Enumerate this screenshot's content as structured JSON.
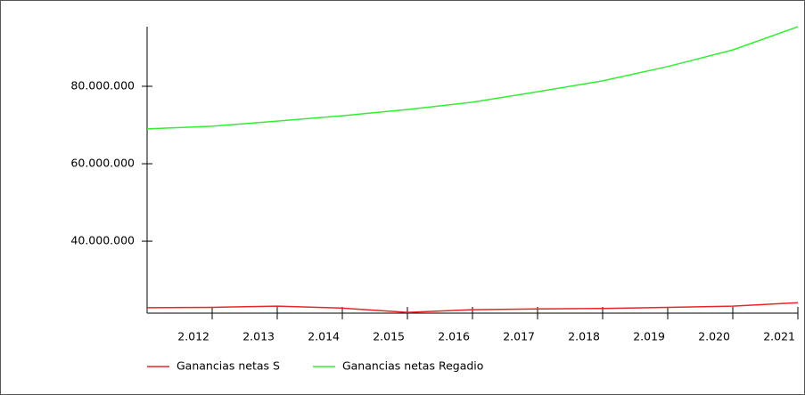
{
  "chart_data": {
    "type": "line",
    "x": [
      2011,
      2012,
      2013,
      2014,
      2015,
      2016,
      2017,
      2018,
      2019,
      2020,
      2021
    ],
    "series": [
      {
        "name": "Ganancias netas S",
        "color": "#e8262a",
        "values": [
          22800000,
          22900000,
          23200000,
          22700000,
          21600000,
          22300000,
          22500000,
          22600000,
          22900000,
          23200000,
          24100000
        ]
      },
      {
        "name": "Ganancias netas Regadio",
        "color": "#33ee33",
        "values": [
          69000000,
          69700000,
          71000000,
          72400000,
          74000000,
          75900000,
          78600000,
          81400000,
          85100000,
          89400000,
          95400000
        ]
      }
    ],
    "xlim": [
      2011,
      2021
    ],
    "xticks": [
      {
        "value": 2012,
        "label": "2.012"
      },
      {
        "value": 2013,
        "label": "2.013"
      },
      {
        "value": 2014,
        "label": "2.014"
      },
      {
        "value": 2015,
        "label": "2.015"
      },
      {
        "value": 2016,
        "label": "2.016"
      },
      {
        "value": 2017,
        "label": "2.017"
      },
      {
        "value": 2018,
        "label": "2.018"
      },
      {
        "value": 2019,
        "label": "2.019"
      },
      {
        "value": 2020,
        "label": "2.020"
      },
      {
        "value": 2021,
        "label": "2.021"
      }
    ],
    "ylim": [
      21400000,
      95400000
    ],
    "yticks": [
      {
        "value": 40000000,
        "label": "40.000.000"
      },
      {
        "value": 60000000,
        "label": "60.000.000"
      },
      {
        "value": 80000000,
        "label": "80.000.000"
      }
    ],
    "legend": "bottom"
  }
}
